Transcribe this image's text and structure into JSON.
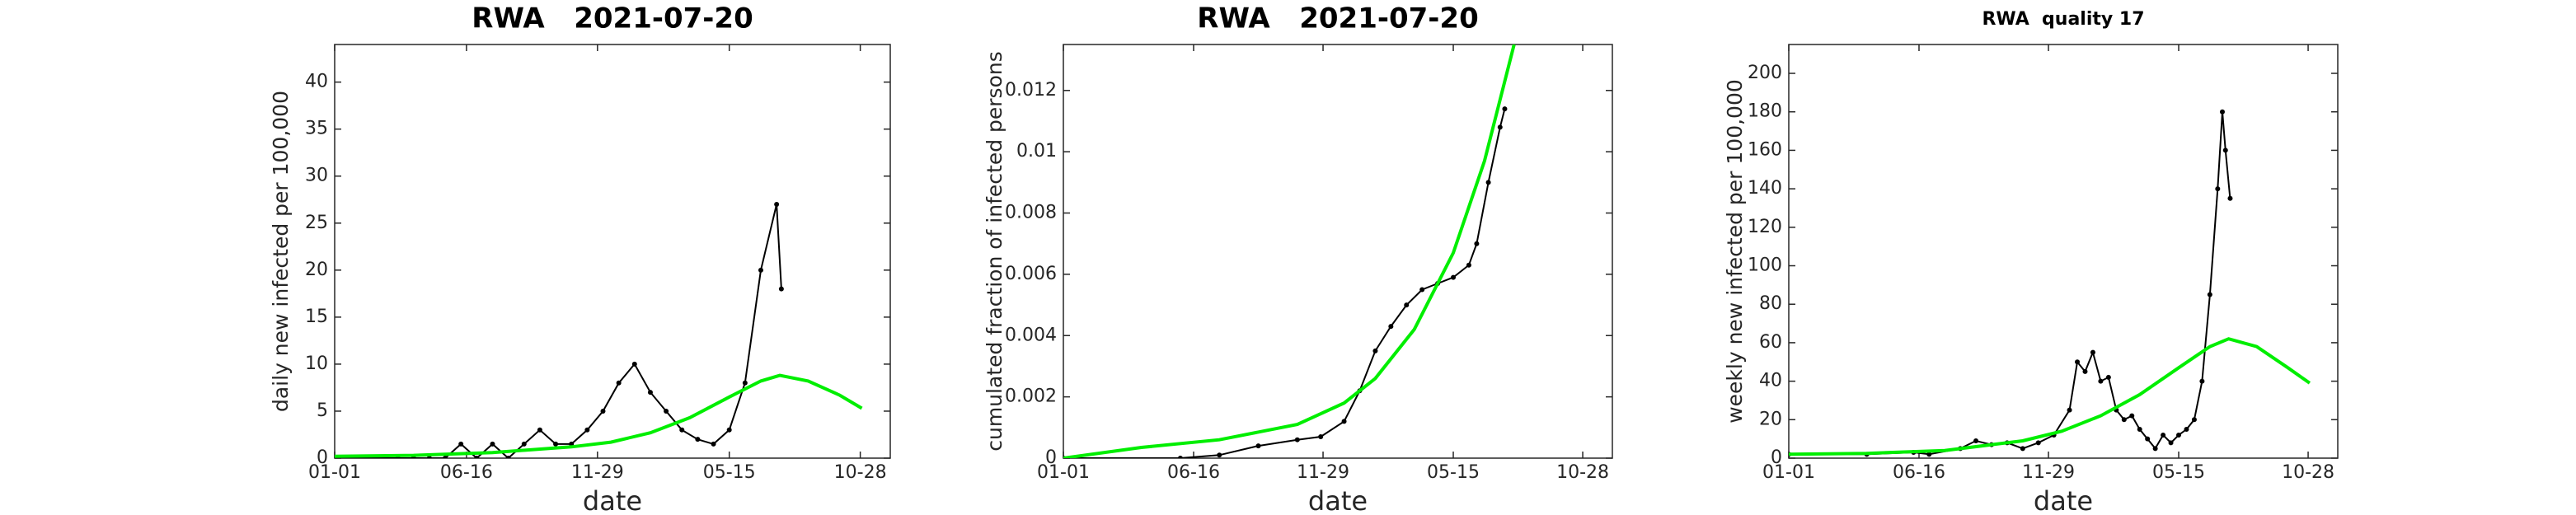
{
  "chart_data": [
    {
      "type": "line",
      "title": "RWA   2021-07-20",
      "xlabel": "date",
      "ylabel": "daily new infected per 100,000",
      "xlim": [
        0,
        704
      ],
      "ylim": [
        0,
        44
      ],
      "xticks": [
        {
          "value": 0,
          "label": "01-01"
        },
        {
          "value": 167,
          "label": "06-16"
        },
        {
          "value": 333,
          "label": "11-29"
        },
        {
          "value": 500,
          "label": "05-15"
        },
        {
          "value": 666,
          "label": "10-28"
        }
      ],
      "yticks": [
        0,
        5,
        10,
        15,
        20,
        25,
        30,
        35,
        40
      ],
      "series": [
        {
          "color": "#000000",
          "marker": true,
          "x": [
            0,
            20,
            40,
            60,
            80,
            100,
            120,
            140,
            160,
            180,
            200,
            220,
            240,
            260,
            280,
            300,
            320,
            340,
            360,
            380,
            400,
            420,
            440,
            460,
            480,
            500,
            520,
            540,
            560,
            566
          ],
          "values": [
            0,
            0,
            0,
            0,
            0,
            0,
            0,
            0,
            1.5,
            0,
            1.5,
            0,
            1.5,
            3,
            1.5,
            1.5,
            3,
            5,
            8,
            10,
            7,
            5,
            3,
            2,
            1.5,
            3,
            8,
            20,
            27,
            18
          ]
        },
        {
          "color": "#00ee00",
          "marker": false,
          "x": [
            0,
            100,
            200,
            300,
            350,
            400,
            450,
            500,
            540,
            564,
            600,
            640,
            668
          ],
          "values": [
            0.2,
            0.3,
            0.6,
            1.2,
            1.7,
            2.7,
            4.3,
            6.5,
            8.2,
            8.8,
            8.2,
            6.7,
            5.3
          ]
        }
      ]
    },
    {
      "type": "line",
      "title": "RWA   2021-07-20",
      "xlabel": "date",
      "ylabel": "cumulated fraction of infected persons",
      "xlim": [
        0,
        704
      ],
      "ylim": [
        0,
        0.0135
      ],
      "xticks": [
        {
          "value": 0,
          "label": "01-01"
        },
        {
          "value": 167,
          "label": "06-16"
        },
        {
          "value": 333,
          "label": "11-29"
        },
        {
          "value": 500,
          "label": "05-15"
        },
        {
          "value": 666,
          "label": "10-28"
        }
      ],
      "yticks": [
        0,
        0.002,
        0.004,
        0.006,
        0.008,
        0.01,
        0.012
      ],
      "series": [
        {
          "color": "#000000",
          "marker": true,
          "x": [
            0,
            150,
            200,
            250,
            300,
            330,
            360,
            380,
            400,
            420,
            440,
            460,
            480,
            500,
            520,
            530,
            545,
            560,
            566
          ],
          "values": [
            0,
            0,
            0.0001,
            0.0004,
            0.0006,
            0.0007,
            0.0012,
            0.0022,
            0.0035,
            0.0043,
            0.005,
            0.0055,
            0.0057,
            0.0059,
            0.0063,
            0.007,
            0.009,
            0.0108,
            0.0114
          ]
        },
        {
          "color": "#00ee00",
          "marker": false,
          "x": [
            0,
            100,
            200,
            300,
            360,
            400,
            450,
            500,
            540,
            578
          ],
          "values": [
            0,
            0.00035,
            0.0006,
            0.0011,
            0.0018,
            0.0026,
            0.0042,
            0.0067,
            0.0097,
            0.0135
          ]
        }
      ]
    },
    {
      "type": "line",
      "title": "RWA  quality 17",
      "xlabel": "date",
      "ylabel": "weekly new infected per 100,000",
      "xlim": [
        0,
        704
      ],
      "ylim": [
        0,
        215
      ],
      "xticks": [
        {
          "value": 0,
          "label": "01-01"
        },
        {
          "value": 167,
          "label": "06-16"
        },
        {
          "value": 333,
          "label": "11-29"
        },
        {
          "value": 500,
          "label": "05-15"
        },
        {
          "value": 666,
          "label": "10-28"
        }
      ],
      "yticks": [
        0,
        20,
        40,
        60,
        80,
        100,
        120,
        140,
        160,
        180,
        200
      ],
      "series": [
        {
          "color": "#000000",
          "marker": true,
          "x": [
            0,
            100,
            160,
            180,
            220,
            240,
            260,
            280,
            300,
            320,
            340,
            360,
            370,
            380,
            390,
            400,
            410,
            420,
            430,
            440,
            450,
            460,
            470,
            480,
            490,
            500,
            510,
            520,
            530,
            540,
            550,
            556,
            560,
            566
          ],
          "values": [
            2,
            2,
            3,
            2,
            5,
            9,
            7,
            8,
            5,
            8,
            12,
            25,
            50,
            45,
            55,
            40,
            42,
            25,
            20,
            22,
            15,
            10,
            5,
            12,
            8,
            12,
            15,
            20,
            40,
            85,
            140,
            180,
            160,
            135
          ]
        },
        {
          "color": "#00ee00",
          "marker": false,
          "x": [
            0,
            100,
            200,
            300,
            350,
            400,
            450,
            500,
            540,
            564,
            600,
            640,
            668
          ],
          "values": [
            2,
            2.5,
            4,
            9,
            14,
            22,
            33,
            47,
            58,
            62,
            58,
            47,
            39
          ]
        }
      ]
    }
  ]
}
